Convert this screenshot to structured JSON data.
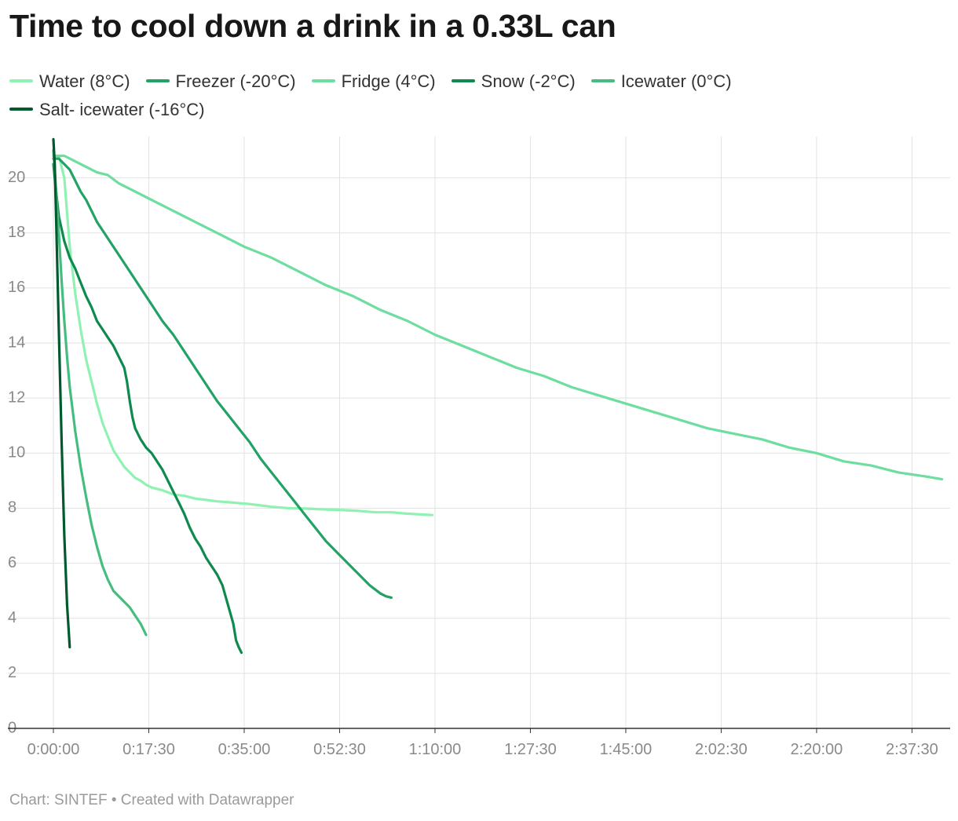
{
  "chart_data": {
    "type": "line",
    "title": "Time to cool down a drink in a 0.33L can",
    "x_unit": "h:mm:ss",
    "xlim": [
      "0:00:00",
      "2:44:30"
    ],
    "ylim": [
      0,
      21.5
    ],
    "y_ticks": [
      0,
      2,
      4,
      6,
      8,
      10,
      12,
      14,
      16,
      18,
      20
    ],
    "x_ticks": [
      "0:00:00",
      "0:17:30",
      "0:35:00",
      "0:52:30",
      "1:10:00",
      "1:27:30",
      "1:45:00",
      "2:02:30",
      "2:20:00",
      "2:37:30"
    ],
    "grid": true,
    "legend_position": "top",
    "series": [
      {
        "name": "Water (8°C)",
        "color": "#8ff2b2",
        "points": [
          [
            "0:00:00",
            20.8
          ],
          [
            "0:01:00",
            20.8
          ],
          [
            "0:02:00",
            20.0
          ],
          [
            "0:03:00",
            17.5
          ],
          [
            "0:04:00",
            15.8
          ],
          [
            "0:05:00",
            14.5
          ],
          [
            "0:06:00",
            13.4
          ],
          [
            "0:07:00",
            12.6
          ],
          [
            "0:08:00",
            11.8
          ],
          [
            "0:09:00",
            11.1
          ],
          [
            "0:10:00",
            10.6
          ],
          [
            "0:11:00",
            10.1
          ],
          [
            "0:12:00",
            9.8
          ],
          [
            "0:13:00",
            9.5
          ],
          [
            "0:14:00",
            9.3
          ],
          [
            "0:15:00",
            9.1
          ],
          [
            "0:16:00",
            9.0
          ],
          [
            "0:17:00",
            8.85
          ],
          [
            "0:18:00",
            8.75
          ],
          [
            "0:20:00",
            8.65
          ],
          [
            "0:22:00",
            8.5
          ],
          [
            "0:24:00",
            8.45
          ],
          [
            "0:26:00",
            8.35
          ],
          [
            "0:28:00",
            8.3
          ],
          [
            "0:30:00",
            8.25
          ],
          [
            "0:33:00",
            8.2
          ],
          [
            "0:36:00",
            8.15
          ],
          [
            "0:38:00",
            8.1
          ],
          [
            "0:40:00",
            8.05
          ],
          [
            "0:43:00",
            8.0
          ],
          [
            "0:47:00",
            7.98
          ],
          [
            "0:50:00",
            7.95
          ],
          [
            "0:53:00",
            7.93
          ],
          [
            "0:56:00",
            7.9
          ],
          [
            "0:59:00",
            7.85
          ],
          [
            "1:02:00",
            7.85
          ],
          [
            "1:05:00",
            7.8
          ],
          [
            "1:09:30",
            7.75
          ]
        ]
      },
      {
        "name": "Freezer (-20°C)",
        "color": "#22a265",
        "points": [
          [
            "0:00:00",
            20.7
          ],
          [
            "0:01:00",
            20.7
          ],
          [
            "0:02:00",
            20.5
          ],
          [
            "0:03:00",
            20.3
          ],
          [
            "0:04:00",
            19.9
          ],
          [
            "0:05:00",
            19.5
          ],
          [
            "0:06:00",
            19.2
          ],
          [
            "0:07:00",
            18.8
          ],
          [
            "0:08:00",
            18.4
          ],
          [
            "0:10:00",
            17.8
          ],
          [
            "0:12:00",
            17.2
          ],
          [
            "0:14:00",
            16.6
          ],
          [
            "0:16:00",
            16.0
          ],
          [
            "0:18:00",
            15.4
          ],
          [
            "0:20:00",
            14.8
          ],
          [
            "0:22:00",
            14.3
          ],
          [
            "0:24:00",
            13.7
          ],
          [
            "0:26:00",
            13.1
          ],
          [
            "0:28:00",
            12.5
          ],
          [
            "0:30:00",
            11.9
          ],
          [
            "0:32:00",
            11.4
          ],
          [
            "0:34:00",
            10.9
          ],
          [
            "0:36:00",
            10.4
          ],
          [
            "0:38:00",
            9.8
          ],
          [
            "0:40:00",
            9.3
          ],
          [
            "0:42:00",
            8.8
          ],
          [
            "0:44:00",
            8.3
          ],
          [
            "0:46:00",
            7.8
          ],
          [
            "0:48:00",
            7.3
          ],
          [
            "0:50:00",
            6.8
          ],
          [
            "0:52:00",
            6.4
          ],
          [
            "0:54:00",
            6.0
          ],
          [
            "0:56:00",
            5.6
          ],
          [
            "0:58:00",
            5.2
          ],
          [
            "1:00:00",
            4.9
          ],
          [
            "1:01:00",
            4.8
          ],
          [
            "1:02:00",
            4.75
          ]
        ]
      },
      {
        "name": "Fridge (4°C)",
        "color": "#6ddea0",
        "points": [
          [
            "0:00:00",
            20.8
          ],
          [
            "0:02:00",
            20.8
          ],
          [
            "0:05:00",
            20.5
          ],
          [
            "0:08:00",
            20.2
          ],
          [
            "0:10:00",
            20.1
          ],
          [
            "0:12:00",
            19.8
          ],
          [
            "0:15:00",
            19.5
          ],
          [
            "0:18:00",
            19.2
          ],
          [
            "0:21:00",
            18.9
          ],
          [
            "0:24:00",
            18.6
          ],
          [
            "0:27:00",
            18.3
          ],
          [
            "0:30:00",
            18.0
          ],
          [
            "0:35:00",
            17.5
          ],
          [
            "0:40:00",
            17.1
          ],
          [
            "0:45:00",
            16.6
          ],
          [
            "0:50:00",
            16.1
          ],
          [
            "0:55:00",
            15.7
          ],
          [
            "1:00:00",
            15.2
          ],
          [
            "1:05:00",
            14.8
          ],
          [
            "1:10:00",
            14.3
          ],
          [
            "1:15:00",
            13.9
          ],
          [
            "1:20:00",
            13.5
          ],
          [
            "1:25:00",
            13.1
          ],
          [
            "1:30:00",
            12.8
          ],
          [
            "1:35:00",
            12.4
          ],
          [
            "1:40:00",
            12.1
          ],
          [
            "1:45:00",
            11.8
          ],
          [
            "1:50:00",
            11.5
          ],
          [
            "1:55:00",
            11.2
          ],
          [
            "2:00:00",
            10.9
          ],
          [
            "2:05:00",
            10.7
          ],
          [
            "2:10:00",
            10.5
          ],
          [
            "2:15:00",
            10.2
          ],
          [
            "2:20:00",
            10.0
          ],
          [
            "2:25:00",
            9.7
          ],
          [
            "2:30:00",
            9.55
          ],
          [
            "2:35:00",
            9.3
          ],
          [
            "2:40:00",
            9.15
          ],
          [
            "2:43:00",
            9.05
          ]
        ]
      },
      {
        "name": "Snow (-2°C)",
        "color": "#0f8a4f",
        "points": [
          [
            "0:00:00",
            20.5
          ],
          [
            "0:00:30",
            19.5
          ],
          [
            "0:01:00",
            18.6
          ],
          [
            "0:02:00",
            17.7
          ],
          [
            "0:03:00",
            17.1
          ],
          [
            "0:04:00",
            16.7
          ],
          [
            "0:05:00",
            16.2
          ],
          [
            "0:06:00",
            15.7
          ],
          [
            "0:07:00",
            15.3
          ],
          [
            "0:08:00",
            14.8
          ],
          [
            "0:09:00",
            14.5
          ],
          [
            "0:10:00",
            14.2
          ],
          [
            "0:11:00",
            13.9
          ],
          [
            "0:12:00",
            13.5
          ],
          [
            "0:13:00",
            13.1
          ],
          [
            "0:13:30",
            12.6
          ],
          [
            "0:14:00",
            11.9
          ],
          [
            "0:14:30",
            11.3
          ],
          [
            "0:15:00",
            10.9
          ],
          [
            "0:16:00",
            10.5
          ],
          [
            "0:17:00",
            10.2
          ],
          [
            "0:18:00",
            10.0
          ],
          [
            "0:19:00",
            9.7
          ],
          [
            "0:20:00",
            9.4
          ],
          [
            "0:21:00",
            9.0
          ],
          [
            "0:22:00",
            8.6
          ],
          [
            "0:23:00",
            8.2
          ],
          [
            "0:24:00",
            7.8
          ],
          [
            "0:25:00",
            7.3
          ],
          [
            "0:26:00",
            6.9
          ],
          [
            "0:27:00",
            6.6
          ],
          [
            "0:28:00",
            6.2
          ],
          [
            "0:29:00",
            5.9
          ],
          [
            "0:30:00",
            5.6
          ],
          [
            "0:31:00",
            5.2
          ],
          [
            "0:32:00",
            4.5
          ],
          [
            "0:33:00",
            3.8
          ],
          [
            "0:33:30",
            3.2
          ],
          [
            "0:34:00",
            2.95
          ],
          [
            "0:34:30",
            2.75
          ]
        ]
      },
      {
        "name": "Icewater (0°C)",
        "color": "#45bd7f",
        "points": [
          [
            "0:00:00",
            21.0
          ],
          [
            "0:00:30",
            19.5
          ],
          [
            "0:01:00",
            18.0
          ],
          [
            "0:01:30",
            16.3
          ],
          [
            "0:02:00",
            14.8
          ],
          [
            "0:02:30",
            13.5
          ],
          [
            "0:03:00",
            12.4
          ],
          [
            "0:04:00",
            10.8
          ],
          [
            "0:05:00",
            9.5
          ],
          [
            "0:06:00",
            8.4
          ],
          [
            "0:07:00",
            7.4
          ],
          [
            "0:08:00",
            6.6
          ],
          [
            "0:09:00",
            5.9
          ],
          [
            "0:10:00",
            5.4
          ],
          [
            "0:11:00",
            5.0
          ],
          [
            "0:12:00",
            4.8
          ],
          [
            "0:13:00",
            4.6
          ],
          [
            "0:14:00",
            4.4
          ],
          [
            "0:15:00",
            4.1
          ],
          [
            "0:16:00",
            3.8
          ],
          [
            "0:17:00",
            3.4
          ]
        ]
      },
      {
        "name": "Salt- icewater (-16°C)",
        "color": "#005a2e",
        "points": [
          [
            "0:00:00",
            21.4
          ],
          [
            "0:00:15",
            20.5
          ],
          [
            "0:00:30",
            18.5
          ],
          [
            "0:01:00",
            14.5
          ],
          [
            "0:01:30",
            10.5
          ],
          [
            "0:02:00",
            7.0
          ],
          [
            "0:02:30",
            4.5
          ],
          [
            "0:03:00",
            2.95
          ]
        ]
      }
    ]
  },
  "footer": {
    "text": "Chart: SINTEF • Created with Datawrapper"
  }
}
